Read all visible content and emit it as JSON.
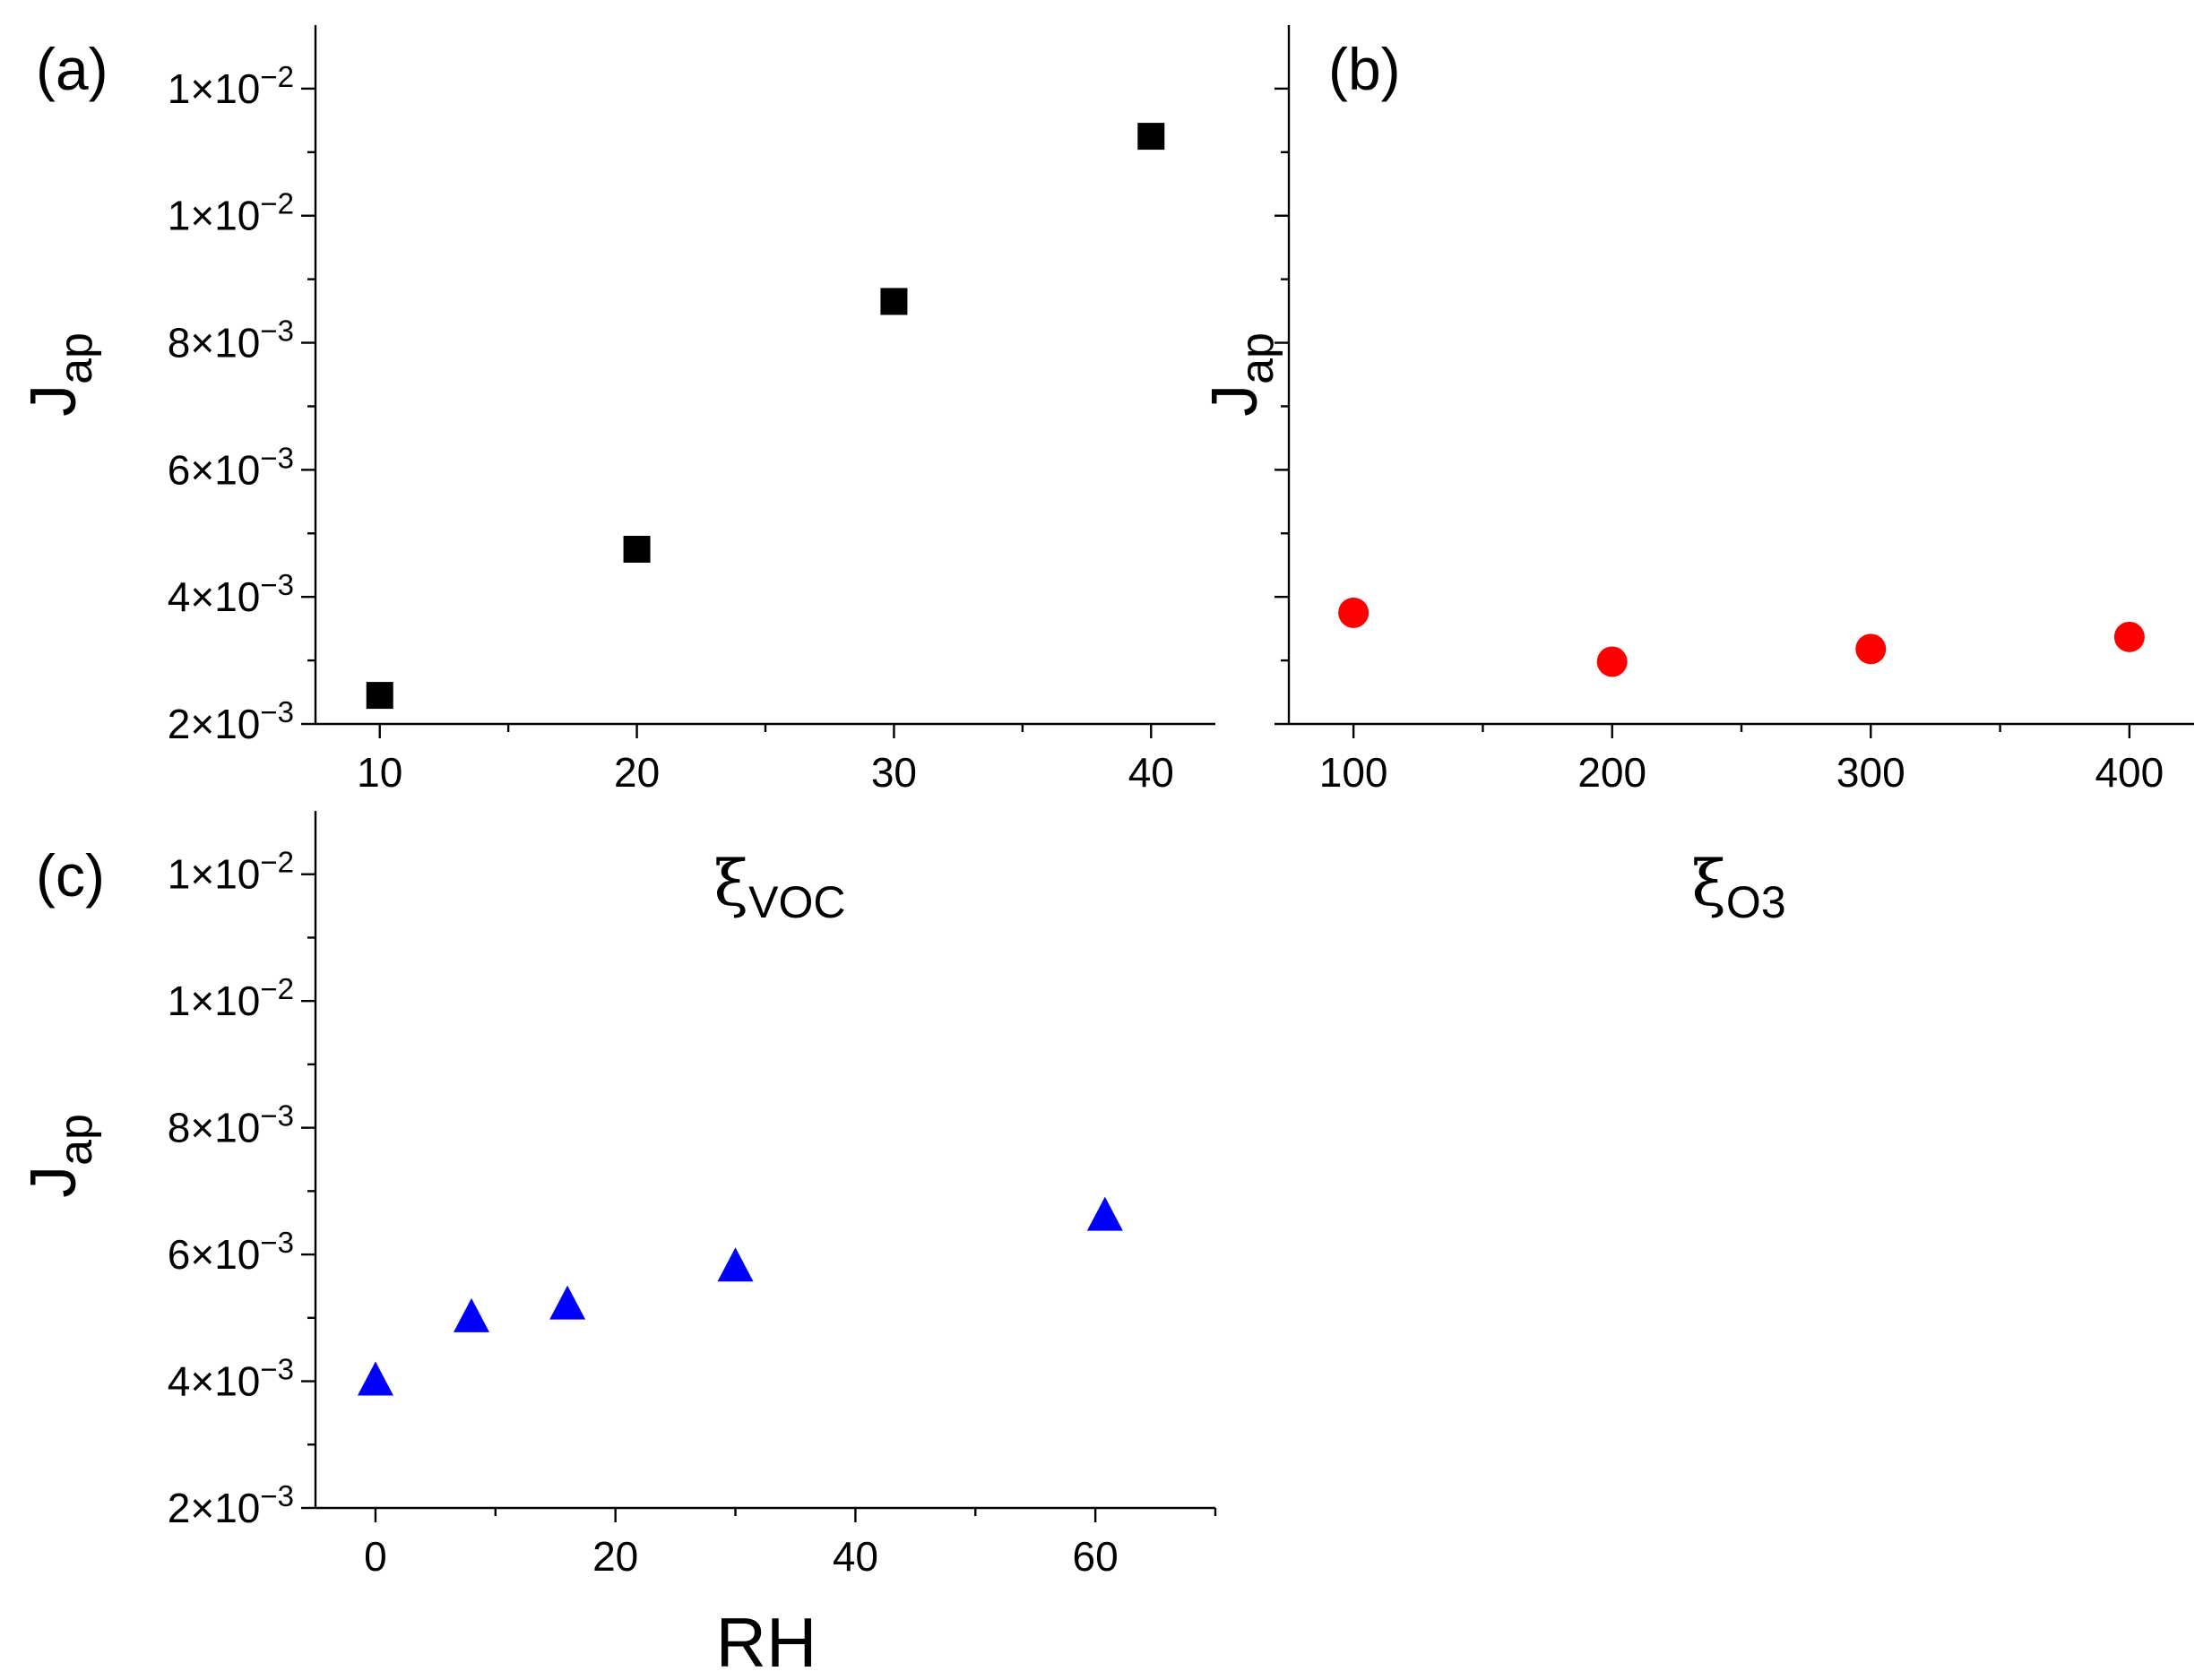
{
  "chart_data": [
    {
      "panel": "a",
      "type": "scatter",
      "panel_label": "(a)",
      "xlabel_main": "ξ",
      "xlabel_sub": "VOC",
      "ylabel_main": "J",
      "ylabel_sub": "ap",
      "xlim": [
        7.5,
        42.5
      ],
      "ylim": [
        0.002,
        0.013
      ],
      "xticks": [
        10,
        20,
        30,
        40
      ],
      "xtick_labels": [
        "10",
        "20",
        "30",
        "40"
      ],
      "xminor": [
        15,
        25,
        35
      ],
      "yticks": [
        0.002,
        0.004,
        0.006,
        0.008,
        0.01,
        0.012
      ],
      "ytick_labels": [
        {
          "mant": "2",
          "exp": "-3"
        },
        {
          "mant": "4",
          "exp": "-3"
        },
        {
          "mant": "6",
          "exp": "-3"
        },
        {
          "mant": "8",
          "exp": "-3"
        },
        {
          "mant": "1",
          "exp": "-2"
        },
        {
          "mant": "1",
          "exp": "-2"
        }
      ],
      "yminor": [
        0.003,
        0.005,
        0.007,
        0.009,
        0.011
      ],
      "marker": "square",
      "color": "#000000",
      "x": [
        10,
        20,
        30,
        40
      ],
      "y": [
        0.00245,
        0.00475,
        0.00865,
        0.01125
      ]
    },
    {
      "panel": "b",
      "type": "scatter",
      "panel_label": "(b)",
      "xlabel_main": "ξ",
      "xlabel_sub": "O3",
      "ylabel_main": "J",
      "ylabel_sub": "ap",
      "xlim": [
        75,
        425
      ],
      "ylim": [
        0.002,
        0.013
      ],
      "xticks": [
        100,
        200,
        300,
        400
      ],
      "xtick_labels": [
        "100",
        "200",
        "300",
        "400"
      ],
      "xminor": [
        150,
        250,
        350
      ],
      "yticks": [
        0.002,
        0.004,
        0.006,
        0.008,
        0.01,
        0.012
      ],
      "ytick_labels": [],
      "yminor": [
        0.003,
        0.005,
        0.007,
        0.009,
        0.011
      ],
      "marker": "circle",
      "color": "#ff0000",
      "x": [
        100,
        200,
        300,
        400
      ],
      "y": [
        0.00375,
        0.00298,
        0.00318,
        0.00337
      ]
    },
    {
      "panel": "c",
      "type": "scatter",
      "panel_label": "(c)",
      "xlabel_main": "RH",
      "xlabel_sub": "",
      "ylabel_main": "J",
      "ylabel_sub": "ap",
      "xlim": [
        -5,
        70
      ],
      "ylim": [
        0.002,
        0.013
      ],
      "xticks": [
        0,
        20,
        40,
        60
      ],
      "xtick_labels": [
        "0",
        "20",
        "40",
        "60"
      ],
      "xminor": [
        10,
        30,
        50,
        70
      ],
      "yticks": [
        0.002,
        0.004,
        0.006,
        0.008,
        0.01,
        0.012
      ],
      "ytick_labels": [
        {
          "mant": "2",
          "exp": "-3"
        },
        {
          "mant": "4",
          "exp": "-3"
        },
        {
          "mant": "6",
          "exp": "-3"
        },
        {
          "mant": "8",
          "exp": "-3"
        },
        {
          "mant": "1",
          "exp": "-2"
        },
        {
          "mant": "1",
          "exp": "-2"
        }
      ],
      "yminor": [
        0.003,
        0.005,
        0.007,
        0.009,
        0.011
      ],
      "marker": "triangle",
      "color": "#0000ff",
      "x": [
        0,
        8,
        16,
        30,
        60.8
      ],
      "y": [
        0.004,
        0.005,
        0.0052,
        0.0058,
        0.0066
      ]
    }
  ]
}
